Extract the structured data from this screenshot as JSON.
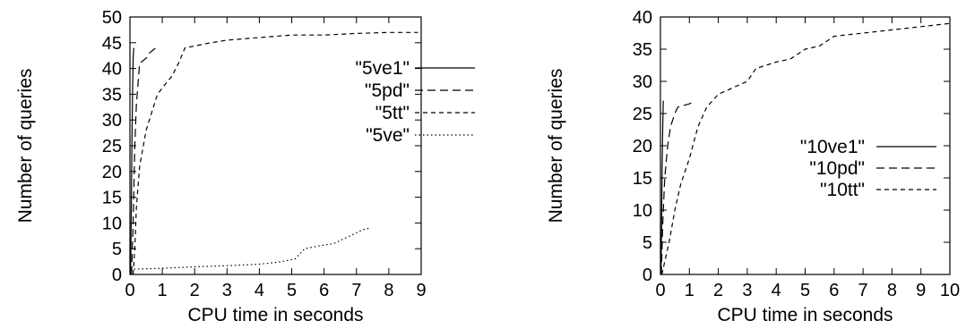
{
  "chart_data": [
    {
      "type": "line",
      "xlabel": "CPU time in seconds",
      "ylabel": "Number of queries",
      "xlim": [
        0,
        9
      ],
      "ylim": [
        0,
        50
      ],
      "xticks": [
        "0",
        "1",
        "2",
        "3",
        "4",
        "5",
        "6",
        "7",
        "8",
        "9"
      ],
      "yticks": [
        "0",
        "5",
        "10",
        "15",
        "20",
        "25",
        "30",
        "35",
        "40",
        "45",
        "50"
      ],
      "legend_position": "top-right",
      "series": [
        {
          "name": "\"5ve1\"",
          "dash": "solid",
          "points": [
            [
              0.02,
              0
            ],
            [
              0.04,
              10
            ],
            [
              0.06,
              25
            ],
            [
              0.08,
              35
            ],
            [
              0.1,
              42
            ],
            [
              0.12,
              44
            ]
          ]
        },
        {
          "name": "\"5pd\"",
          "dash": "long-dash",
          "points": [
            [
              0.05,
              0
            ],
            [
              0.1,
              10
            ],
            [
              0.15,
              25
            ],
            [
              0.2,
              33
            ],
            [
              0.3,
              41
            ],
            [
              0.5,
              42
            ],
            [
              0.6,
              43
            ],
            [
              0.8,
              44
            ],
            [
              0.9,
              44
            ]
          ]
        },
        {
          "name": "\"5tt\"",
          "dash": "short-dash",
          "points": [
            [
              0.1,
              0
            ],
            [
              0.15,
              5
            ],
            [
              0.2,
              13
            ],
            [
              0.3,
              21
            ],
            [
              0.5,
              28
            ],
            [
              0.7,
              32
            ],
            [
              0.85,
              35
            ],
            [
              1.1,
              37
            ],
            [
              1.3,
              38.5
            ],
            [
              1.5,
              41
            ],
            [
              1.7,
              44
            ],
            [
              2.5,
              45
            ],
            [
              3.0,
              45.5
            ],
            [
              4.0,
              46
            ],
            [
              5.0,
              46.5
            ],
            [
              6.0,
              46.5
            ],
            [
              7.0,
              46.8
            ],
            [
              8.0,
              47
            ],
            [
              8.9,
              47
            ]
          ]
        },
        {
          "name": "\"5ve\"",
          "dash": "dotted",
          "points": [
            [
              0,
              1
            ],
            [
              1,
              1.2
            ],
            [
              2,
              1.5
            ],
            [
              3,
              1.7
            ],
            [
              4,
              2
            ],
            [
              4.6,
              2.4
            ],
            [
              5.1,
              3
            ],
            [
              5.4,
              5
            ],
            [
              5.8,
              5.5
            ],
            [
              6.3,
              6
            ],
            [
              6.8,
              7.5
            ],
            [
              7.2,
              8.7
            ],
            [
              7.4,
              9
            ]
          ]
        }
      ]
    },
    {
      "type": "line",
      "xlabel": "CPU time in seconds",
      "ylabel": "Number of queries",
      "xlim": [
        0,
        10
      ],
      "ylim": [
        0,
        40
      ],
      "xticks": [
        "0",
        "1",
        "2",
        "3",
        "4",
        "5",
        "6",
        "7",
        "8",
        "9",
        "10"
      ],
      "yticks": [
        "0",
        "5",
        "10",
        "15",
        "20",
        "25",
        "30",
        "35",
        "40"
      ],
      "legend_position": "center-right",
      "series": [
        {
          "name": "\"10ve1\"",
          "dash": "solid",
          "points": [
            [
              0.02,
              0
            ],
            [
              0.04,
              8
            ],
            [
              0.06,
              17
            ],
            [
              0.08,
              23
            ],
            [
              0.1,
              27
            ]
          ]
        },
        {
          "name": "\"10pd\"",
          "dash": "long-dash",
          "points": [
            [
              0.03,
              0
            ],
            [
              0.08,
              8
            ],
            [
              0.15,
              15
            ],
            [
              0.25,
              20
            ],
            [
              0.35,
              23
            ],
            [
              0.5,
              25
            ],
            [
              0.6,
              26
            ],
            [
              1.0,
              26.5
            ],
            [
              1.2,
              27
            ]
          ]
        },
        {
          "name": "\"10tt\"",
          "dash": "short-dash",
          "points": [
            [
              0.05,
              0
            ],
            [
              0.15,
              2
            ],
            [
              0.3,
              5
            ],
            [
              0.5,
              10
            ],
            [
              0.7,
              14
            ],
            [
              1.0,
              18
            ],
            [
              1.3,
              23
            ],
            [
              1.6,
              26
            ],
            [
              2.0,
              28
            ],
            [
              2.5,
              29
            ],
            [
              3.0,
              30
            ],
            [
              3.3,
              32
            ],
            [
              4.0,
              33
            ],
            [
              4.5,
              33.5
            ],
            [
              5.0,
              35
            ],
            [
              5.5,
              35.5
            ],
            [
              6.0,
              37
            ],
            [
              7.0,
              37.5
            ],
            [
              8.0,
              38
            ],
            [
              9.0,
              38.5
            ],
            [
              10.0,
              39
            ]
          ]
        }
      ]
    }
  ]
}
